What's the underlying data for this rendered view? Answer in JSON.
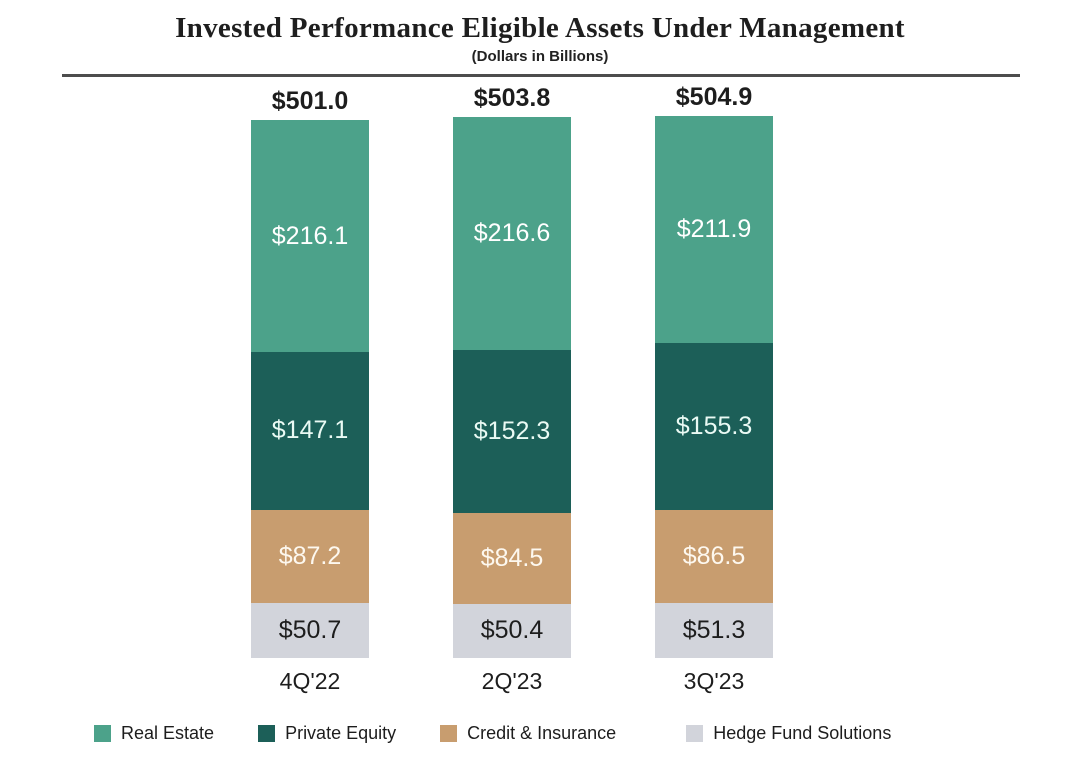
{
  "header": {
    "title": "Invested Performance Eligible Assets Under Management",
    "subtitle": "(Dollars in Billions)"
  },
  "chart_data": {
    "type": "bar",
    "stacked": true,
    "title": "Invested Performance Eligible Assets Under Management",
    "subtitle": "(Dollars in Billions)",
    "unit": "USD billions",
    "categories": [
      "4Q'22",
      "2Q'23",
      "3Q'23"
    ],
    "totals": [
      501.0,
      503.8,
      504.9
    ],
    "total_labels": [
      "$501.0",
      "$503.8",
      "$504.9"
    ],
    "series": [
      {
        "name": "Real Estate",
        "color": "#4ca28a",
        "label_color": "#ffffff",
        "values": [
          216.1,
          216.6,
          211.9
        ],
        "labels": [
          "$216.1",
          "$216.6",
          "$211.9"
        ]
      },
      {
        "name": "Private Equity",
        "color": "#1c5f58",
        "label_color": "#eafaf4",
        "values": [
          147.1,
          152.3,
          155.3
        ],
        "labels": [
          "$147.1",
          "$152.3",
          "$155.3"
        ]
      },
      {
        "name": "Credit & Insurance",
        "color": "#c89d6f",
        "label_color": "#fdf8ef",
        "values": [
          87.2,
          84.5,
          86.5
        ],
        "labels": [
          "$87.2",
          "$84.5",
          "$86.5"
        ]
      },
      {
        "name": "Hedge Fund Solutions",
        "color": "#d2d4db",
        "label_color": "#1d1d1d",
        "values": [
          50.7,
          50.4,
          51.3
        ],
        "labels": [
          "$50.7",
          "$50.4",
          "$51.3"
        ]
      }
    ],
    "legend": [
      "Real Estate",
      "Private Equity",
      "Credit & Insurance",
      "Hedge Fund Solutions"
    ],
    "legend_position": "bottom",
    "grid": false,
    "axis": "none"
  }
}
